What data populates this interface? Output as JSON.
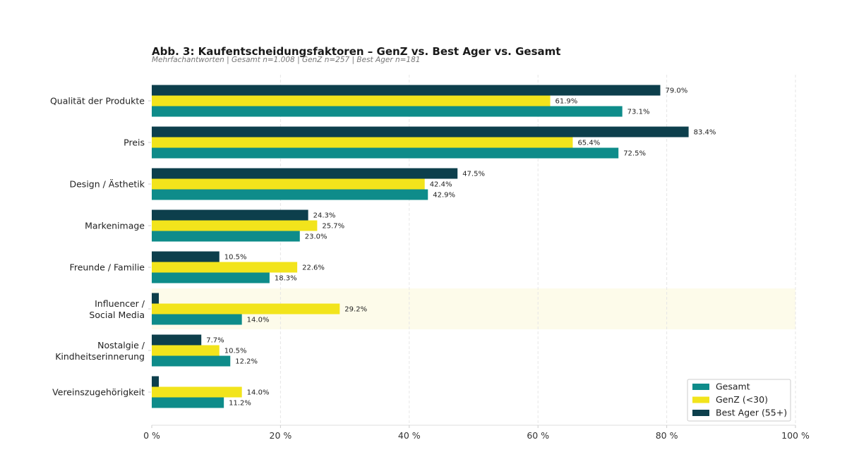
{
  "chart_data": {
    "type": "bar",
    "orientation": "horizontal",
    "title": "Abb. 3: Kaufentscheidungsfaktoren – GenZ vs. Best Ager vs. Gesamt",
    "subtitle": "Mehrfachantworten | Gesamt n=1.008 | GenZ n=257 | Best Ager n=181",
    "xlabel": "",
    "ylabel": "",
    "xlim": [
      0,
      100
    ],
    "x_ticks": [
      0,
      20,
      40,
      60,
      80,
      100
    ],
    "x_tick_labels": [
      "0 %",
      "20 %",
      "40 %",
      "60 %",
      "80 %",
      "100 %"
    ],
    "grid": "vertical dashed",
    "legend_position": "bottom-right",
    "highlighted_category": "Influencer / Social Media",
    "categories": [
      [
        "Qualität der Produkte"
      ],
      [
        "Preis"
      ],
      [
        "Design / Ästhetik"
      ],
      [
        "Markenimage"
      ],
      [
        "Freunde / Familie"
      ],
      [
        "Influencer /",
        "Social Media"
      ],
      [
        "Nostalgie /",
        "Kindheitserinnerung"
      ],
      [
        "Vereinszugehörigkeit"
      ]
    ],
    "series": [
      {
        "name": "Best Ager (55+)",
        "color": "#0d3f4c",
        "values": [
          79.0,
          83.4,
          47.5,
          24.3,
          10.5,
          1.1,
          7.7,
          1.1
        ],
        "labels": [
          "79.0%",
          "83.4%",
          "47.5%",
          "24.3%",
          "10.5%",
          "",
          "7.7%",
          ""
        ]
      },
      {
        "name": "GenZ (<30)",
        "color": "#f2e41c",
        "values": [
          61.9,
          65.4,
          42.4,
          25.7,
          22.6,
          29.2,
          10.5,
          14.0
        ],
        "labels": [
          "61.9%",
          "65.4%",
          "42.4%",
          "25.7%",
          "22.6%",
          "29.2%",
          "10.5%",
          "14.0%"
        ]
      },
      {
        "name": "Gesamt",
        "color": "#0e8c8a",
        "values": [
          73.1,
          72.5,
          42.9,
          23.0,
          18.3,
          14.0,
          12.2,
          11.2
        ],
        "labels": [
          "73.1%",
          "72.5%",
          "42.9%",
          "23.0%",
          "18.3%",
          "14.0%",
          "12.2%",
          "11.2%"
        ]
      }
    ],
    "legend": [
      "Gesamt",
      "GenZ (<30)",
      "Best Ager (55+)"
    ]
  }
}
